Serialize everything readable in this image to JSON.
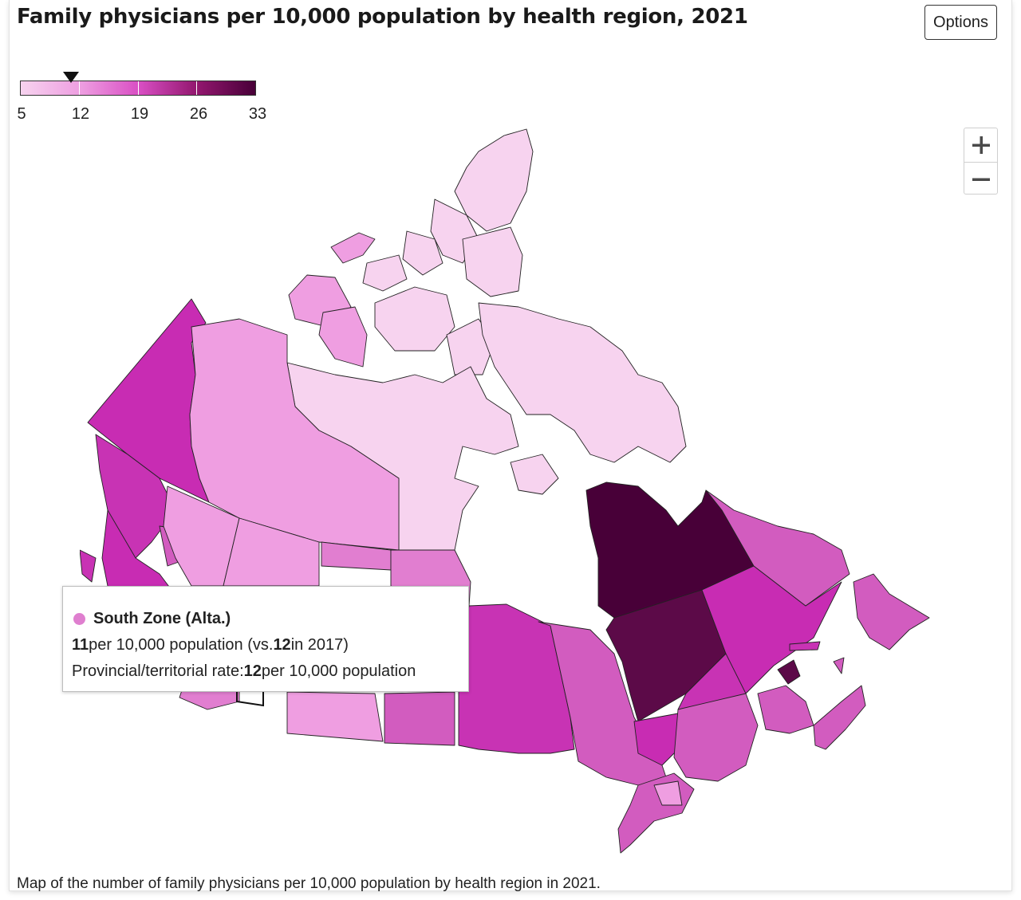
{
  "header": {
    "title": "Family physicians per 10,000 population by health region, 2021",
    "options_label": "Options"
  },
  "legend": {
    "ticks": [
      "5",
      "12",
      "19",
      "26",
      "33"
    ],
    "tick_values": [
      5,
      12,
      19,
      26,
      33
    ],
    "colors": [
      "#f7d3ef",
      "#e98fd9",
      "#c92fb4",
      "#7a0d5d",
      "#460038"
    ],
    "marker_value": 11
  },
  "zoom": {
    "zoom_in_icon": "plus-icon",
    "zoom_out_icon": "minus-icon"
  },
  "tooltip": {
    "region": "South Zone (Alta.)",
    "dot_color": "#df7fcf",
    "value_2021": "11",
    "text_per": " per 10,000 population (vs. ",
    "value_2017": "12",
    "text_in2017": " in 2017)",
    "provincial_label": "Provincial/territorial rate: ",
    "provincial_value": "12",
    "provincial_suffix": " per 10,000 population"
  },
  "map_colors": {
    "arctic": "#f7d3ef",
    "light": "#ef9ee1",
    "medium": "#e17ed0",
    "strong": "#d25cbf",
    "vivid": "#c833b4",
    "bright": "#c82cb3",
    "deep": "#5c0a48",
    "darkest": "#480038"
  },
  "caption": "Map of the number of family physicians per 10,000 population by health region in 2021."
}
